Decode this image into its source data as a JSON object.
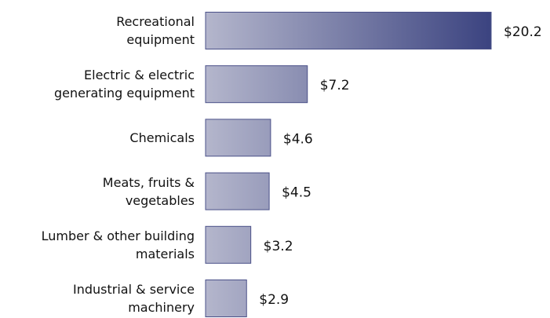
{
  "chart_data": {
    "type": "bar",
    "orientation": "horizontal",
    "categories": [
      "Recreational\nequipment",
      "Electric & electric\ngenerating equipment",
      "Chemicals",
      "Meats, fruits &\nvegetables",
      "Lumber & other building\nmaterials",
      "Industrial & service\nmachinery"
    ],
    "values": [
      20.2,
      7.2,
      4.6,
      4.5,
      3.2,
      2.9
    ],
    "value_labels": [
      "$20.2",
      "$7.2",
      "$4.6",
      "$4.5",
      "$3.2",
      "$2.9"
    ],
    "color": "#3b4380"
  }
}
